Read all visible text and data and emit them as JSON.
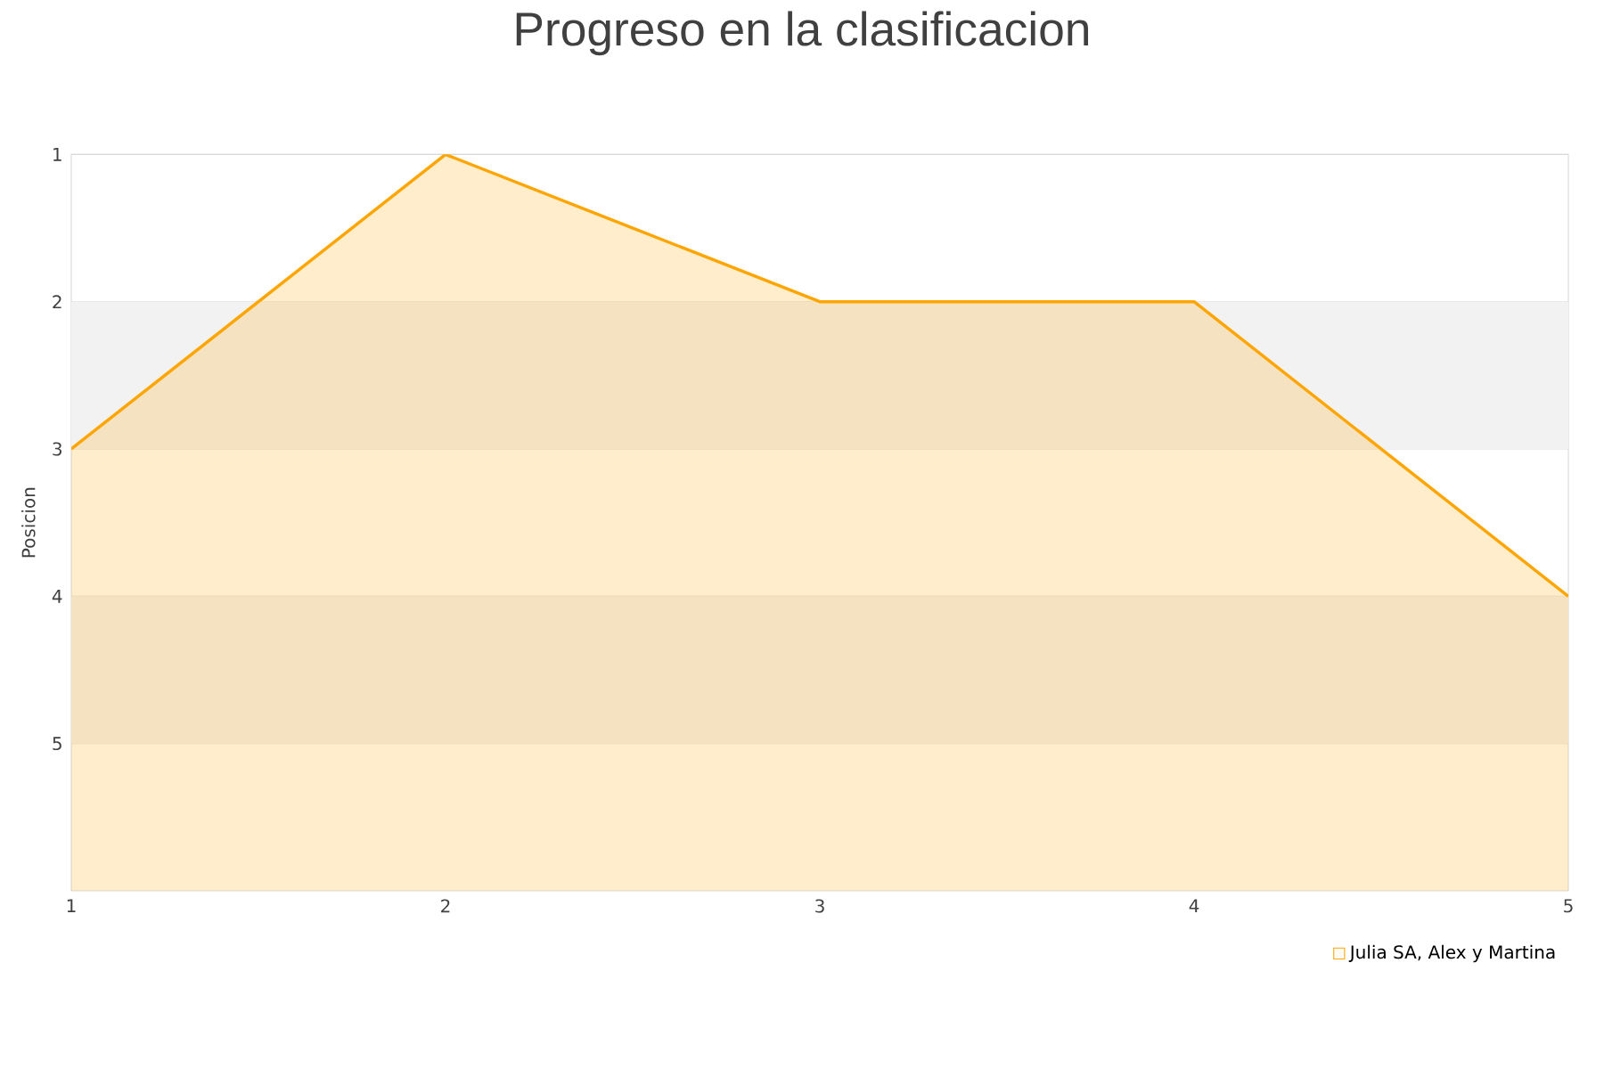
{
  "chart_data": {
    "type": "area",
    "title": "Progreso en la clasificacion",
    "ylabel": "Posicion",
    "x": [
      1,
      2,
      3,
      4,
      5
    ],
    "series": [
      {
        "name": "Julia SA, Alex y Martina",
        "color": "#ffa500",
        "values": [
          3,
          1,
          2,
          2,
          4
        ]
      }
    ],
    "xlim": [
      1,
      5
    ],
    "xticks": [
      1,
      2,
      3,
      4,
      5
    ],
    "ylim": [
      6,
      1
    ],
    "yticks": [
      1,
      2,
      3,
      4,
      5
    ],
    "bands": [
      {
        "axis": "y",
        "from": 2,
        "to": 3,
        "color": "#f2f2f2"
      },
      {
        "axis": "y",
        "from": 4,
        "to": 5,
        "color": "#f2f2f2"
      }
    ],
    "grid": "y",
    "legend": "bottom right"
  }
}
